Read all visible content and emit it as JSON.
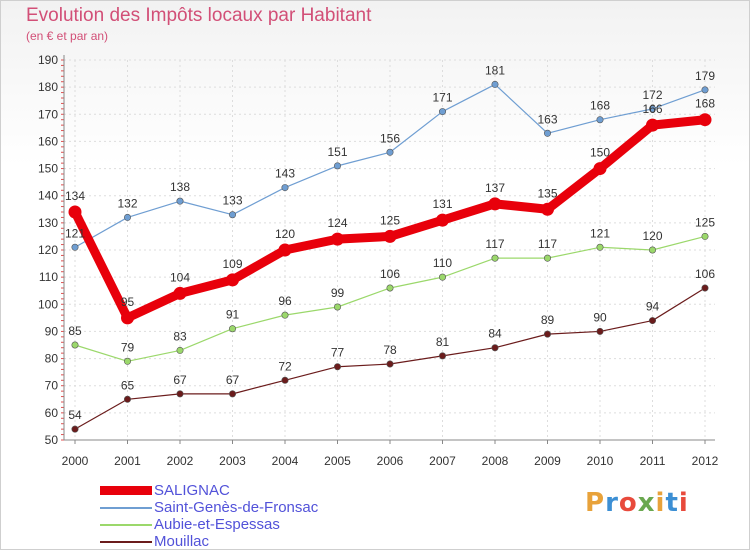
{
  "chart_data": {
    "type": "line",
    "title": "Evolution des Impôts locaux par Habitant",
    "subtitle": "(en € et par an)",
    "xlabel": "",
    "ylabel": "",
    "x": [
      "2000",
      "2001",
      "2002",
      "2003",
      "2004",
      "2005",
      "2006",
      "2007",
      "2008",
      "2009",
      "2010",
      "2011",
      "2012"
    ],
    "ylim": [
      50,
      190
    ],
    "yticks": [
      "50",
      "60",
      "70",
      "80",
      "90",
      "100",
      "110",
      "120",
      "130",
      "140",
      "150",
      "160",
      "170",
      "180",
      "190"
    ],
    "grid": "dotted",
    "legend_placement": "bottom-left",
    "series": [
      {
        "name": "SALIGNAC",
        "color": "#e8000b",
        "values": [
          134,
          95,
          104,
          109,
          120,
          124,
          125,
          131,
          137,
          135,
          150,
          166,
          168
        ]
      },
      {
        "name": "Saint-Genès-de-Fronsac",
        "color": "#6f9ed2",
        "values": [
          121,
          132,
          138,
          133,
          143,
          151,
          156,
          171,
          181,
          163,
          168,
          172,
          179
        ]
      },
      {
        "name": "Aubie-et-Espessas",
        "color": "#9bd86b",
        "values": [
          85,
          79,
          83,
          91,
          96,
          99,
          106,
          110,
          117,
          117,
          121,
          120,
          125
        ]
      },
      {
        "name": "Mouillac",
        "color": "#6b1c1c",
        "values": [
          54,
          65,
          67,
          67,
          72,
          77,
          78,
          81,
          84,
          89,
          90,
          94,
          106
        ]
      }
    ]
  },
  "logo": {
    "letters": [
      "P",
      "r",
      "o",
      "x",
      "i",
      "t",
      "i"
    ],
    "colors": [
      "#e8a23a",
      "#3c8fd4",
      "#e84a3c",
      "#6aa84f",
      "#e8a23a",
      "#3c8fd4",
      "#e84a3c"
    ]
  }
}
